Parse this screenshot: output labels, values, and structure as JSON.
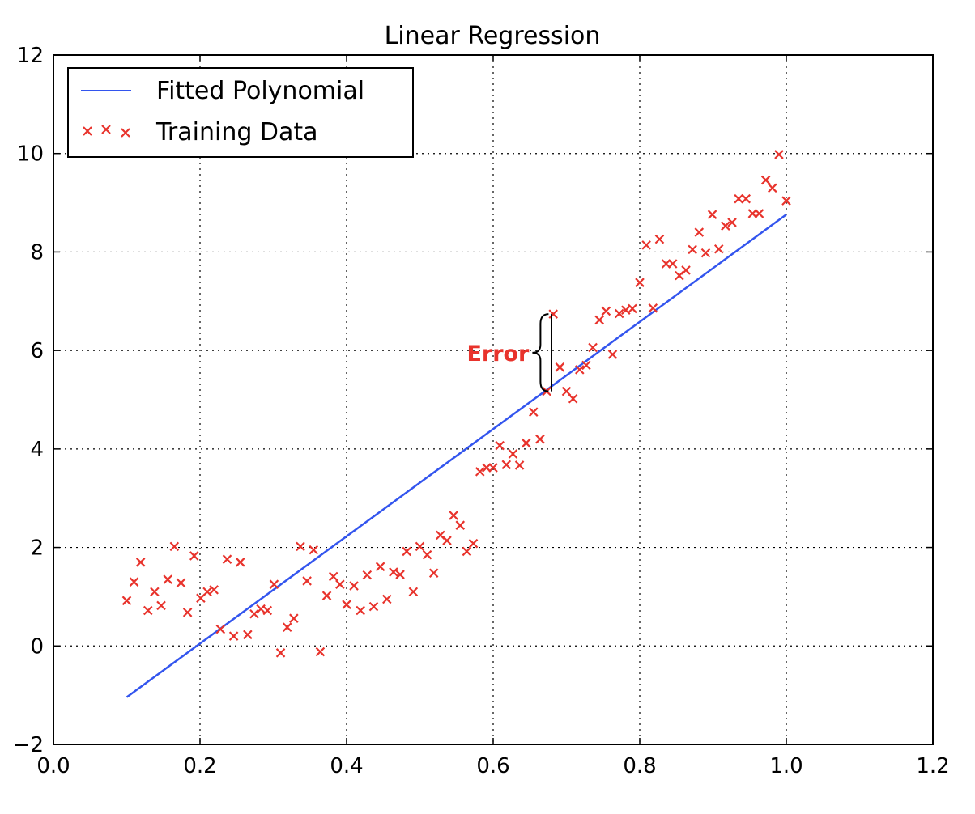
{
  "chart_data": {
    "type": "scatter",
    "title": "Linear Regression",
    "xlabel": "",
    "ylabel": "",
    "xlim": [
      0.0,
      1.2
    ],
    "ylim": [
      -2,
      12
    ],
    "x_ticks": [
      0.0,
      0.2,
      0.4,
      0.6,
      0.8,
      1.0,
      1.2
    ],
    "x_tick_labels": [
      "0.0",
      "0.2",
      "0.4",
      "0.6",
      "0.8",
      "1.0",
      "1.2"
    ],
    "y_ticks": [
      -2,
      0,
      2,
      4,
      6,
      8,
      10,
      12
    ],
    "y_tick_labels": [
      "−2",
      "0",
      "2",
      "4",
      "6",
      "8",
      "10",
      "12"
    ],
    "grid": true,
    "legend_position": "top-left",
    "series": [
      {
        "name": "Fitted Polynomial",
        "kind": "line",
        "color": "#3355ee",
        "x": [
          0.1,
          1.0
        ],
        "y": [
          -1.04,
          8.76
        ]
      },
      {
        "name": "Training Data",
        "kind": "scatter",
        "marker": "x",
        "color": "#e8332c",
        "x": [
          0.1,
          0.11,
          0.119,
          0.129,
          0.138,
          0.147,
          0.156,
          0.165,
          0.174,
          0.183,
          0.192,
          0.201,
          0.21,
          0.219,
          0.228,
          0.237,
          0.246,
          0.255,
          0.265,
          0.274,
          0.283,
          0.292,
          0.301,
          0.31,
          0.319,
          0.328,
          0.337,
          0.346,
          0.355,
          0.364,
          0.373,
          0.382,
          0.391,
          0.4,
          0.41,
          0.419,
          0.428,
          0.437,
          0.446,
          0.455,
          0.464,
          0.473,
          0.482,
          0.491,
          0.5,
          0.51,
          0.519,
          0.528,
          0.537,
          0.546,
          0.555,
          0.564,
          0.573,
          0.582,
          0.591,
          0.6,
          0.609,
          0.618,
          0.627,
          0.636,
          0.645,
          0.655,
          0.664,
          0.673,
          0.682,
          0.691,
          0.7,
          0.709,
          0.718,
          0.727,
          0.736,
          0.745,
          0.754,
          0.763,
          0.772,
          0.781,
          0.79,
          0.8,
          0.809,
          0.818,
          0.827,
          0.836,
          0.845,
          0.854,
          0.863,
          0.872,
          0.881,
          0.89,
          0.899,
          0.908,
          0.917,
          0.926,
          0.935,
          0.945,
          0.954,
          0.963,
          0.972,
          0.981,
          0.99,
          1.0
        ],
        "y": [
          0.92,
          1.3,
          1.7,
          0.72,
          1.1,
          0.82,
          1.35,
          2.02,
          1.28,
          0.68,
          1.83,
          0.97,
          1.1,
          1.14,
          0.34,
          1.76,
          0.2,
          1.7,
          0.23,
          0.65,
          0.75,
          0.72,
          1.25,
          -0.14,
          0.38,
          0.56,
          2.02,
          1.32,
          1.95,
          -0.12,
          1.02,
          1.41,
          1.25,
          0.84,
          1.22,
          0.72,
          1.44,
          0.8,
          1.61,
          0.95,
          1.5,
          1.45,
          1.92,
          1.1,
          2.02,
          1.85,
          1.48,
          2.25,
          2.14,
          2.65,
          2.45,
          1.92,
          2.08,
          3.54,
          3.62,
          3.62,
          4.07,
          3.68,
          3.9,
          3.67,
          4.12,
          4.75,
          4.2,
          5.17,
          6.74,
          5.66,
          5.17,
          5.02,
          5.61,
          5.7,
          6.06,
          6.62,
          6.8,
          5.92,
          6.75,
          6.82,
          6.85,
          7.38,
          8.14,
          6.86,
          8.26,
          7.76,
          7.76,
          7.52,
          7.63,
          8.05,
          8.4,
          7.98,
          8.76,
          8.06,
          8.53,
          8.6,
          9.08,
          9.08,
          8.78,
          8.78,
          9.46,
          9.3,
          9.98,
          9.04
        ]
      }
    ],
    "annotations": [
      {
        "text": "Error",
        "x": 0.68,
        "y": 5.97,
        "color": "#e8332c"
      }
    ]
  }
}
